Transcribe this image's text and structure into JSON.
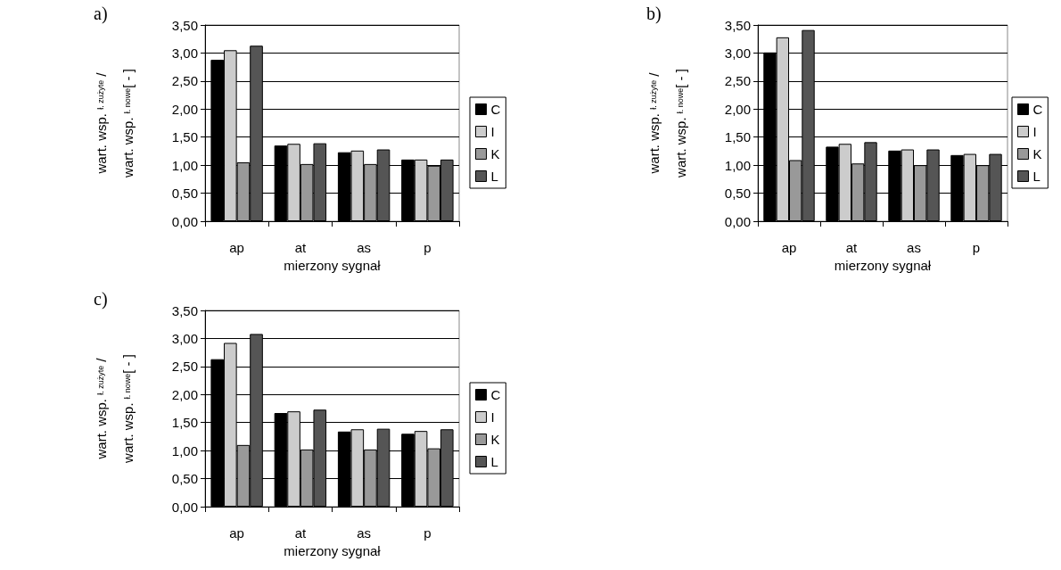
{
  "chart_data": [
    {
      "type": "bar",
      "title": "a)",
      "xlabel": "mierzony sygnał",
      "ylabel": "wart. wsp. $_{ł. zużyte}$ /\nwart. wsp. $_{ł. nowe}$[ - ]",
      "categories": [
        "ap",
        "at",
        "as",
        "p"
      ],
      "legend": "right",
      "grid": "y",
      "ylim": [
        0,
        3.5
      ],
      "yticks": [
        {
          "value": 0,
          "label": "0,00"
        },
        {
          "value": 0.5,
          "label": "0,50"
        },
        {
          "value": 1,
          "label": "1,00"
        },
        {
          "value": 1.5,
          "label": "1,50"
        },
        {
          "value": 2,
          "label": "2,00"
        },
        {
          "value": 2.5,
          "label": "2,50"
        },
        {
          "value": 3,
          "label": "3,00"
        },
        {
          "value": 3.5,
          "label": "3,50"
        }
      ],
      "series": [
        {
          "name": "C",
          "color": "#000000",
          "values": [
            2.88,
            1.35,
            1.23,
            1.1
          ]
        },
        {
          "name": "I",
          "color": "#cccccc",
          "values": [
            3.05,
            1.38,
            1.26,
            1.1
          ]
        },
        {
          "name": "K",
          "color": "#999999",
          "values": [
            1.05,
            1.02,
            1.02,
            0.99
          ]
        },
        {
          "name": "L",
          "color": "#555555",
          "values": [
            3.13,
            1.39,
            1.28,
            1.1
          ]
        }
      ]
    },
    {
      "type": "bar",
      "title": "b)",
      "xlabel": "mierzony sygnał",
      "ylabel": "wart. wsp. $_{ł. zużyte}$ /\nwart. wsp. $_{ł. nowe}$[ - ]",
      "categories": [
        "ap",
        "at",
        "as",
        "p"
      ],
      "legend": "right",
      "grid": "y",
      "ylim": [
        0,
        3.5
      ],
      "yticks": [
        {
          "value": 0,
          "label": "0,00"
        },
        {
          "value": 0.5,
          "label": "0,50"
        },
        {
          "value": 1,
          "label": "1,00"
        },
        {
          "value": 1.5,
          "label": "1,50"
        },
        {
          "value": 2,
          "label": "2,00"
        },
        {
          "value": 2.5,
          "label": "2,50"
        },
        {
          "value": 3,
          "label": "3,00"
        },
        {
          "value": 3.5,
          "label": "3,50"
        }
      ],
      "series": [
        {
          "name": "C",
          "color": "#000000",
          "values": [
            3.01,
            1.33,
            1.26,
            1.18
          ]
        },
        {
          "name": "I",
          "color": "#cccccc",
          "values": [
            3.28,
            1.38,
            1.28,
            1.2
          ]
        },
        {
          "name": "K",
          "color": "#999999",
          "values": [
            1.09,
            1.03,
            1.0,
            1.0
          ]
        },
        {
          "name": "L",
          "color": "#555555",
          "values": [
            3.41,
            1.41,
            1.28,
            1.2
          ]
        }
      ]
    },
    {
      "type": "bar",
      "title": "c)",
      "xlabel": "mierzony sygnał",
      "ylabel": "wart. wsp. $_{ł. zużyte}$ /\nwart. wsp. $_{ł. nowe}$[ - ]",
      "categories": [
        "ap",
        "at",
        "as",
        "p"
      ],
      "legend": "right",
      "grid": "y",
      "ylim": [
        0,
        3.5
      ],
      "yticks": [
        {
          "value": 0,
          "label": "0,00"
        },
        {
          "value": 0.5,
          "label": "0,50"
        },
        {
          "value": 1,
          "label": "1,00"
        },
        {
          "value": 1.5,
          "label": "1,50"
        },
        {
          "value": 2,
          "label": "2,00"
        },
        {
          "value": 2.5,
          "label": "2,50"
        },
        {
          "value": 3,
          "label": "3,00"
        },
        {
          "value": 3.5,
          "label": "3,50"
        }
      ],
      "series": [
        {
          "name": "C",
          "color": "#000000",
          "values": [
            2.63,
            1.67,
            1.34,
            1.3
          ]
        },
        {
          "name": "I",
          "color": "#cccccc",
          "values": [
            2.92,
            1.7,
            1.38,
            1.35
          ]
        },
        {
          "name": "K",
          "color": "#999999",
          "values": [
            1.1,
            1.02,
            1.02,
            1.04
          ]
        },
        {
          "name": "L",
          "color": "#555555",
          "values": [
            3.08,
            1.73,
            1.39,
            1.38
          ]
        }
      ]
    }
  ]
}
